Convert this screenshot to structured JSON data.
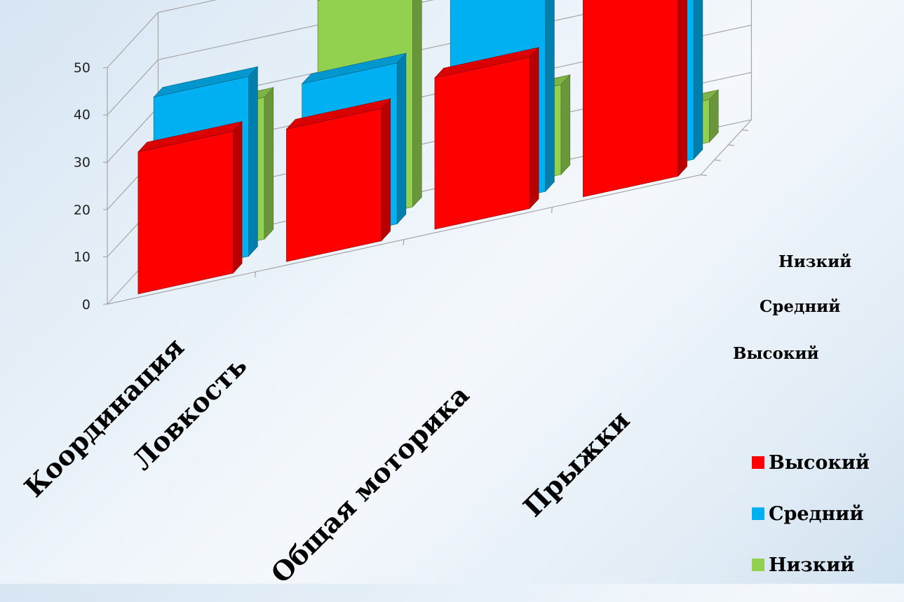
{
  "chart_data": {
    "type": "bar",
    "categories": [
      "Координация",
      "Ловкость",
      "Общая моторика",
      "Прыжки"
    ],
    "series": [
      {
        "name": "Высокий",
        "values": [
          30,
          28,
          32,
          47
        ],
        "color": "#ff0000"
      },
      {
        "name": "Средний",
        "values": [
          38,
          34,
          50,
          46
        ],
        "color": "#00b0f0"
      },
      {
        "name": "Низкий",
        "values": [
          30,
          48,
          19,
          9
        ],
        "color": "#92d050"
      }
    ],
    "yticks": [
      "0",
      "10",
      "20",
      "30",
      "40",
      "50"
    ],
    "ylim": [
      0,
      50
    ],
    "depth_labels": [
      "Высокий",
      "Средний",
      "Низкий"
    ],
    "legend": [
      {
        "label": "Высокий",
        "color": "#ff0000"
      },
      {
        "label": "Средний",
        "color": "#00b0f0"
      },
      {
        "label": "Низкий",
        "color": "#92d050"
      }
    ],
    "legend_position": "bottom-right",
    "grid": true
  }
}
